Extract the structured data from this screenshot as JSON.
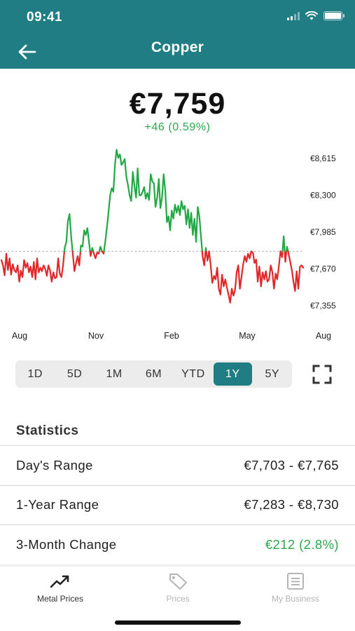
{
  "status_bar": {
    "time": "09:41"
  },
  "header": {
    "title": "Copper"
  },
  "price": {
    "value": "€7,759",
    "change": "+46 (0.59%)"
  },
  "chart_data": {
    "type": "line",
    "title": "",
    "xlabel": "",
    "ylabel": "",
    "y_ticks": [
      "€8,615",
      "€8,300",
      "€7,985",
      "€7,670",
      "€7,355"
    ],
    "x_ticks": [
      "Aug",
      "Nov",
      "Feb",
      "May",
      "Aug"
    ],
    "ylim": [
      7250,
      8720
    ],
    "baseline": 7820,
    "colors": {
      "above": "#22a844",
      "below": "#e0282a",
      "baseline": "#b5b5b5"
    },
    "series": [
      {
        "values": [
          7745,
          7700,
          7615,
          7800,
          7660,
          7760,
          7620,
          7710,
          7660,
          7640,
          7700,
          7560,
          7655,
          7600,
          7745,
          7680,
          7720,
          7640,
          7690,
          7600,
          7730,
          7580,
          7760,
          7640,
          7680,
          7650,
          7700,
          7670,
          7610,
          7700,
          7655,
          7560,
          7640,
          7590,
          7600,
          7760,
          7630,
          7600,
          7700,
          7850,
          7900,
          8080,
          8140,
          7950,
          7800,
          7650,
          7720,
          7780,
          7700,
          7870,
          7860,
          8000,
          7960,
          8020,
          7900,
          7780,
          7850,
          7800,
          7760,
          7810,
          7800,
          7860,
          7820,
          7800,
          7900,
          8020,
          8150,
          8300,
          8360,
          8330,
          8560,
          8690,
          8620,
          8650,
          8560,
          8580,
          8610,
          8460,
          8390,
          8300,
          8250,
          8500,
          8380,
          8280,
          8530,
          8300,
          8300,
          8330,
          8370,
          8270,
          8320,
          8260,
          8480,
          8420,
          8400,
          8200,
          8280,
          8440,
          8190,
          8280,
          8480,
          8340,
          8070,
          8120,
          8000,
          8170,
          8100,
          8220,
          8150,
          8210,
          8130,
          8250,
          8180,
          8210,
          8050,
          8180,
          8020,
          8150,
          7960,
          8100,
          7900,
          8200,
          8120,
          7950,
          7780,
          7700,
          7850,
          7740,
          7820,
          7700,
          7550,
          7610,
          7580,
          7680,
          7500,
          7450,
          7620,
          7520,
          7580,
          7510,
          7450,
          7380,
          7500,
          7440,
          7490,
          7640,
          7700,
          7500,
          7600,
          7710,
          7780,
          7730,
          7800,
          7760,
          7820,
          7810,
          7720,
          7750,
          7560,
          7690,
          7520,
          7640,
          7580,
          7650,
          7560,
          7580,
          7700,
          7640,
          7500,
          7630,
          7580,
          7690,
          7820,
          7770,
          7950,
          7730,
          7860,
          7800,
          7730,
          7660,
          7560,
          7480,
          7650,
          7500,
          7690,
          7700,
          7680
        ]
      }
    ]
  },
  "range_selector": {
    "options": [
      "1D",
      "5D",
      "1M",
      "6M",
      "YTD",
      "1Y",
      "5Y"
    ],
    "selected": "1Y"
  },
  "statistics": {
    "title": "Statistics",
    "rows": [
      {
        "label": "Day's Range",
        "value": "€7,703 - €7,765"
      },
      {
        "label": "1-Year Range",
        "value": "€7,283 - €8,730"
      },
      {
        "label": "3-Month Change",
        "value": "€212 (2.8%)"
      }
    ]
  },
  "tabbar": {
    "tabs": [
      {
        "label": "Metal Prices",
        "icon": "trending-up-icon",
        "active": true
      },
      {
        "label": "Prices",
        "icon": "price-tag-icon",
        "active": false
      },
      {
        "label": "My Business",
        "icon": "document-icon",
        "active": false
      }
    ]
  }
}
